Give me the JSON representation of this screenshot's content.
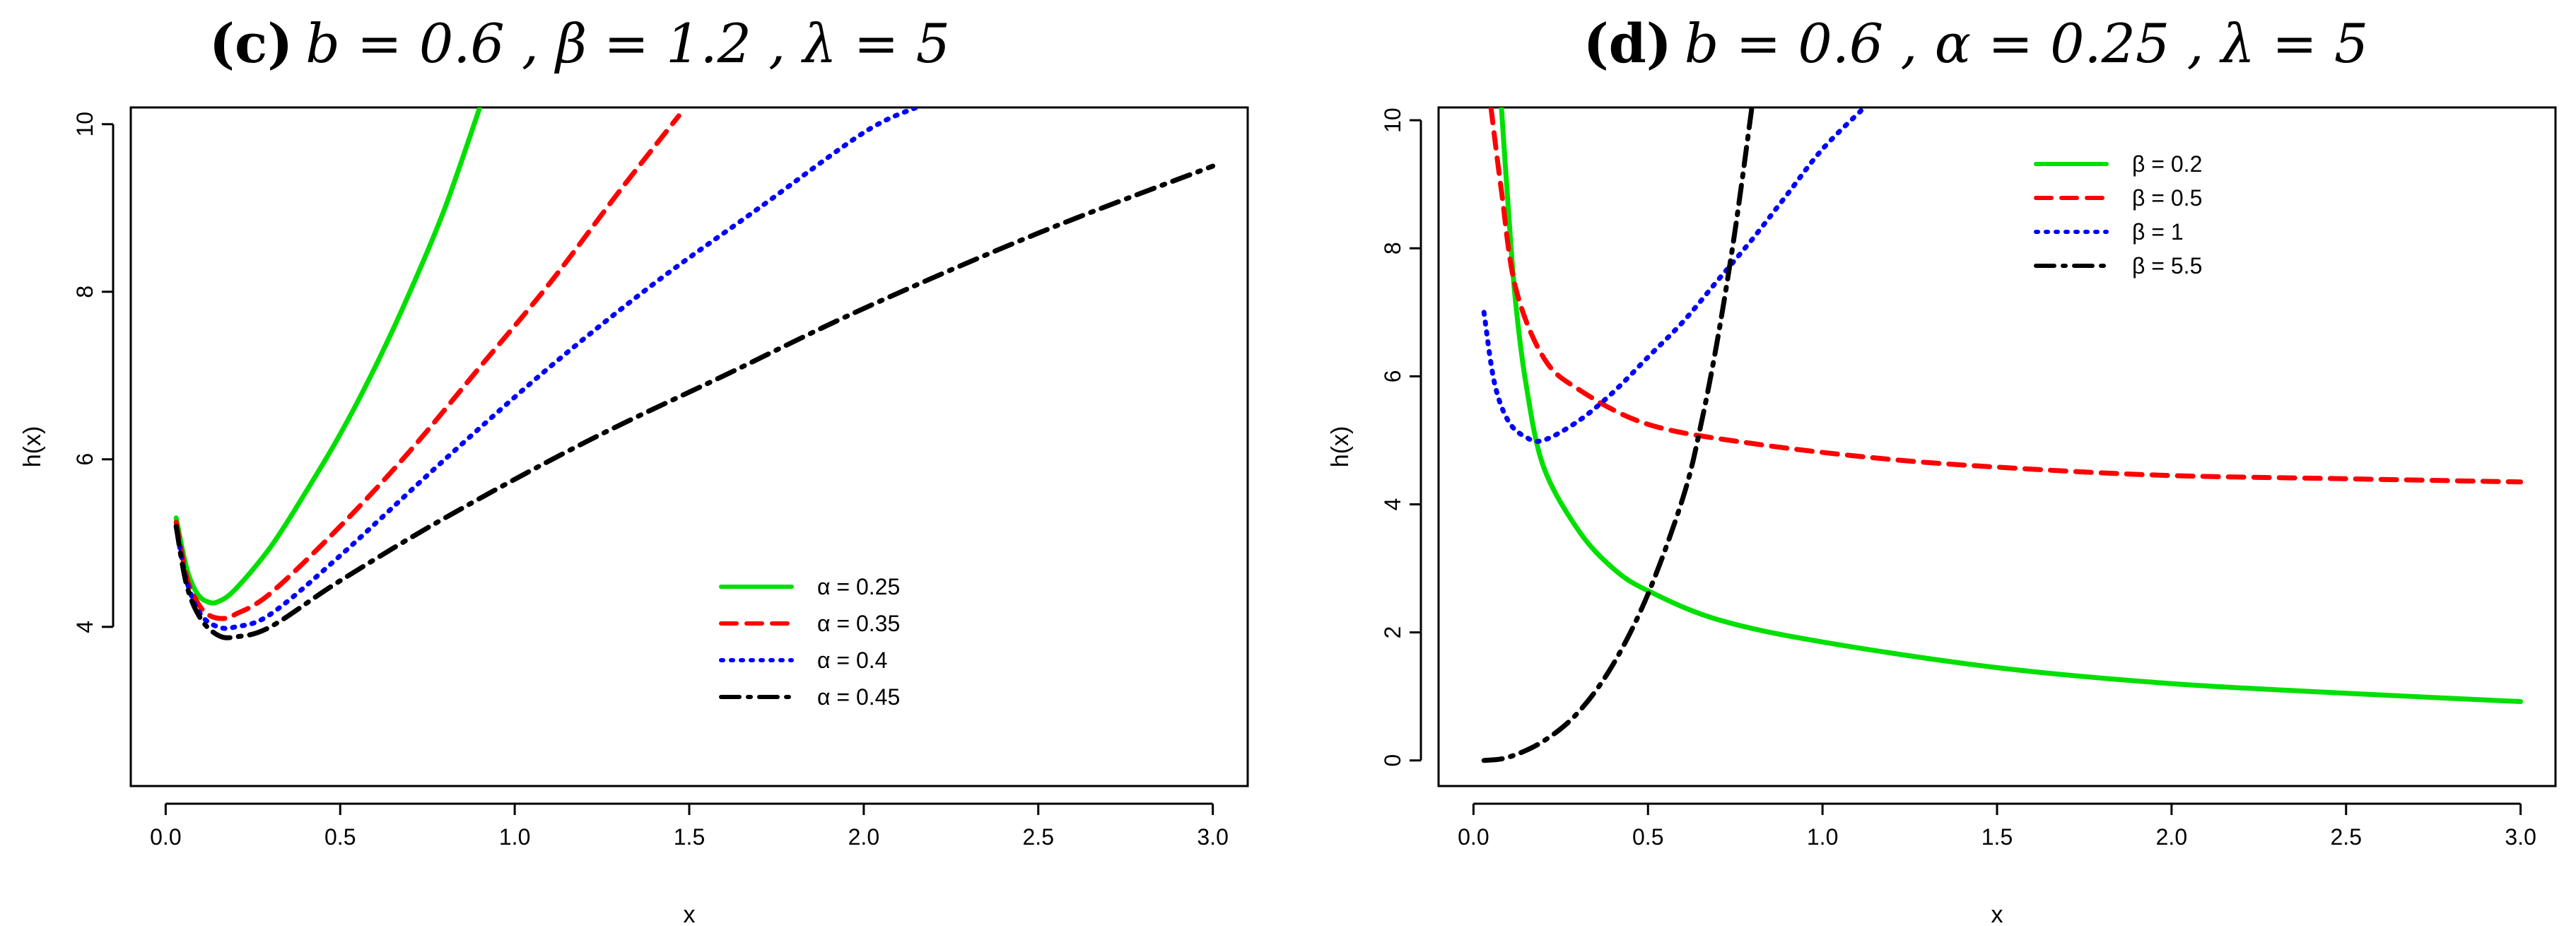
{
  "chart_data": [
    {
      "type": "line",
      "title_prefix": "(c)",
      "title": "b = 0.6 , β = 1.2 , λ = 5",
      "xlabel": "x",
      "ylabel": "h(x)",
      "xlim": [
        -0.1,
        3.1
      ],
      "ylim": [
        2.1,
        10.2
      ],
      "xticks": [
        0.0,
        0.5,
        1.0,
        1.5,
        2.0,
        2.5,
        3.0
      ],
      "xtick_labels": [
        "0.0",
        "0.5",
        "1.0",
        "1.5",
        "2.0",
        "2.5",
        "3.0"
      ],
      "yticks": [
        4,
        6,
        8,
        10
      ],
      "ytick_labels": [
        "4",
        "6",
        "8",
        "10"
      ],
      "legend_position": "bottom-right",
      "series": [
        {
          "name": "α = 0.25",
          "color": "#00e000",
          "dash": "solid",
          "x": [
            0.03,
            0.06,
            0.09,
            0.12,
            0.15,
            0.2,
            0.3,
            0.4,
            0.5,
            0.6,
            0.7,
            0.8,
            0.9
          ],
          "y": [
            5.3,
            4.7,
            4.4,
            4.3,
            4.3,
            4.45,
            4.95,
            5.6,
            6.3,
            7.1,
            8.0,
            9.0,
            10.2
          ]
        },
        {
          "name": "α = 0.35",
          "color": "#ff0000",
          "dash": "dashed",
          "x": [
            0.03,
            0.06,
            0.09,
            0.12,
            0.16,
            0.2,
            0.3,
            0.5,
            0.7,
            0.9,
            1.1,
            1.3,
            1.47
          ],
          "y": [
            5.25,
            4.6,
            4.3,
            4.15,
            4.1,
            4.15,
            4.4,
            5.2,
            6.1,
            7.1,
            8.1,
            9.2,
            10.1
          ]
        },
        {
          "name": "α = 0.4",
          "color": "#0000ff",
          "dash": "dotted",
          "x": [
            0.03,
            0.06,
            0.1,
            0.15,
            0.2,
            0.3,
            0.5,
            0.8,
            1.1,
            1.4,
            1.7,
            2.0,
            2.15
          ],
          "y": [
            5.2,
            4.55,
            4.15,
            4.0,
            4.0,
            4.15,
            4.85,
            6.0,
            7.1,
            8.1,
            9.0,
            9.9,
            10.2
          ]
        },
        {
          "name": "α = 0.45",
          "color": "#000000",
          "dash": "dotdash",
          "x": [
            0.03,
            0.06,
            0.1,
            0.15,
            0.2,
            0.3,
            0.5,
            0.8,
            1.2,
            1.6,
            2.0,
            2.5,
            3.0
          ],
          "y": [
            5.2,
            4.5,
            4.1,
            3.9,
            3.88,
            4.0,
            4.55,
            5.3,
            6.2,
            7.0,
            7.8,
            8.7,
            9.5
          ]
        }
      ]
    },
    {
      "type": "line",
      "title_prefix": "(d)",
      "title": "b = 0.6 , α = 0.25 , λ = 5",
      "xlabel": "x",
      "ylabel": "h(x)",
      "xlim": [
        -0.1,
        3.1
      ],
      "ylim": [
        -0.4,
        10.2
      ],
      "xticks": [
        0.0,
        0.5,
        1.0,
        1.5,
        2.0,
        2.5,
        3.0
      ],
      "xtick_labels": [
        "0.0",
        "0.5",
        "1.0",
        "1.5",
        "2.0",
        "2.5",
        "3.0"
      ],
      "yticks": [
        0,
        2,
        4,
        6,
        8,
        10
      ],
      "ytick_labels": [
        "0",
        "2",
        "4",
        "6",
        "8",
        "10"
      ],
      "legend_position": "top-right",
      "series": [
        {
          "name": "β = 0.2",
          "color": "#00e000",
          "dash": "solid",
          "x": [
            0.08,
            0.1,
            0.12,
            0.15,
            0.2,
            0.3,
            0.4,
            0.5,
            0.7,
            1.0,
            1.5,
            2.0,
            2.5,
            3.0
          ],
          "y": [
            10.2,
            8.6,
            7.2,
            5.9,
            4.6,
            3.6,
            3.0,
            2.65,
            2.2,
            1.85,
            1.45,
            1.2,
            1.05,
            0.92
          ]
        },
        {
          "name": "β = 0.5",
          "color": "#ff0000",
          "dash": "dashed",
          "x": [
            0.05,
            0.08,
            0.12,
            0.2,
            0.3,
            0.5,
            0.8,
            1.2,
            1.6,
            2.0,
            2.5,
            3.0
          ],
          "y": [
            10.2,
            8.9,
            7.4,
            6.3,
            5.8,
            5.25,
            4.95,
            4.7,
            4.55,
            4.45,
            4.4,
            4.35
          ]
        },
        {
          "name": "β = 1",
          "color": "#0000ff",
          "dash": "dotted",
          "x": [
            0.03,
            0.06,
            0.1,
            0.15,
            0.2,
            0.3,
            0.4,
            0.5,
            0.6,
            0.7,
            0.8,
            0.9,
            1.0,
            1.12
          ],
          "y": [
            7.0,
            5.9,
            5.3,
            5.05,
            5.0,
            5.3,
            5.75,
            6.3,
            6.85,
            7.5,
            8.15,
            8.85,
            9.55,
            10.2
          ]
        },
        {
          "name": "β = 5.5",
          "color": "#000000",
          "dash": "dotdash",
          "x": [
            0.03,
            0.1,
            0.2,
            0.3,
            0.4,
            0.5,
            0.6,
            0.65,
            0.7,
            0.75,
            0.8
          ],
          "y": [
            0.0,
            0.05,
            0.3,
            0.75,
            1.5,
            2.6,
            4.1,
            5.2,
            6.6,
            8.3,
            10.3
          ]
        }
      ]
    }
  ]
}
